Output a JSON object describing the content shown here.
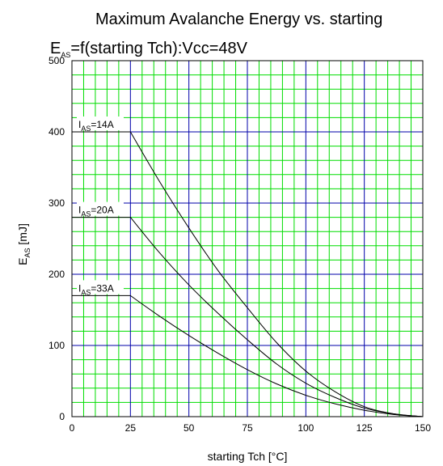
{
  "chart_data": {
    "type": "line",
    "title_line1": "Maximum Avalanche Energy vs. starting",
    "title_line2": {
      "main": "E",
      "sub": "AS",
      "rest": "=f(starting Tch):Vcc=48V"
    },
    "xlabel": "starting Tch [°C]",
    "ylabel": {
      "main": "E",
      "sub": "AS",
      "rest": " [mJ]"
    },
    "xlim": [
      0,
      150
    ],
    "ylim": [
      0,
      500
    ],
    "xticks": [
      0,
      25,
      50,
      75,
      100,
      125,
      150
    ],
    "yticks": [
      0,
      100,
      200,
      300,
      400,
      500
    ],
    "x_minor_step": 5,
    "y_minor_step": 20,
    "grid": true,
    "colors": {
      "minor_grid": "#00dd00",
      "major_grid": "#0000aa",
      "curve": "#000000",
      "frame": "#000000"
    },
    "series": [
      {
        "label": {
          "main": "I",
          "sub": "AS",
          "rest": "=14A"
        },
        "x": [
          0,
          25,
          37.5,
          50,
          62.5,
          75,
          87.5,
          100,
          112.5,
          125,
          137.5,
          150
        ],
        "y": [
          400,
          400,
          330,
          265,
          205,
          153,
          104,
          64,
          35,
          14,
          4,
          0
        ]
      },
      {
        "label": {
          "main": "I",
          "sub": "AS",
          "rest": "=20A"
        },
        "x": [
          0,
          25,
          37.5,
          50,
          62.5,
          75,
          87.5,
          100,
          112.5,
          125,
          137.5,
          150
        ],
        "y": [
          280,
          280,
          230,
          185,
          145,
          108,
          74,
          47,
          27,
          12,
          4,
          0
        ]
      },
      {
        "label": {
          "main": "I",
          "sub": "AS",
          "rest": "=33A"
        },
        "x": [
          0,
          25,
          37.5,
          50,
          62.5,
          75,
          87.5,
          100,
          112.5,
          125,
          137.5,
          150
        ],
        "y": [
          170,
          170,
          141,
          114,
          89,
          66,
          46,
          30,
          18,
          9,
          3,
          0
        ]
      }
    ]
  }
}
